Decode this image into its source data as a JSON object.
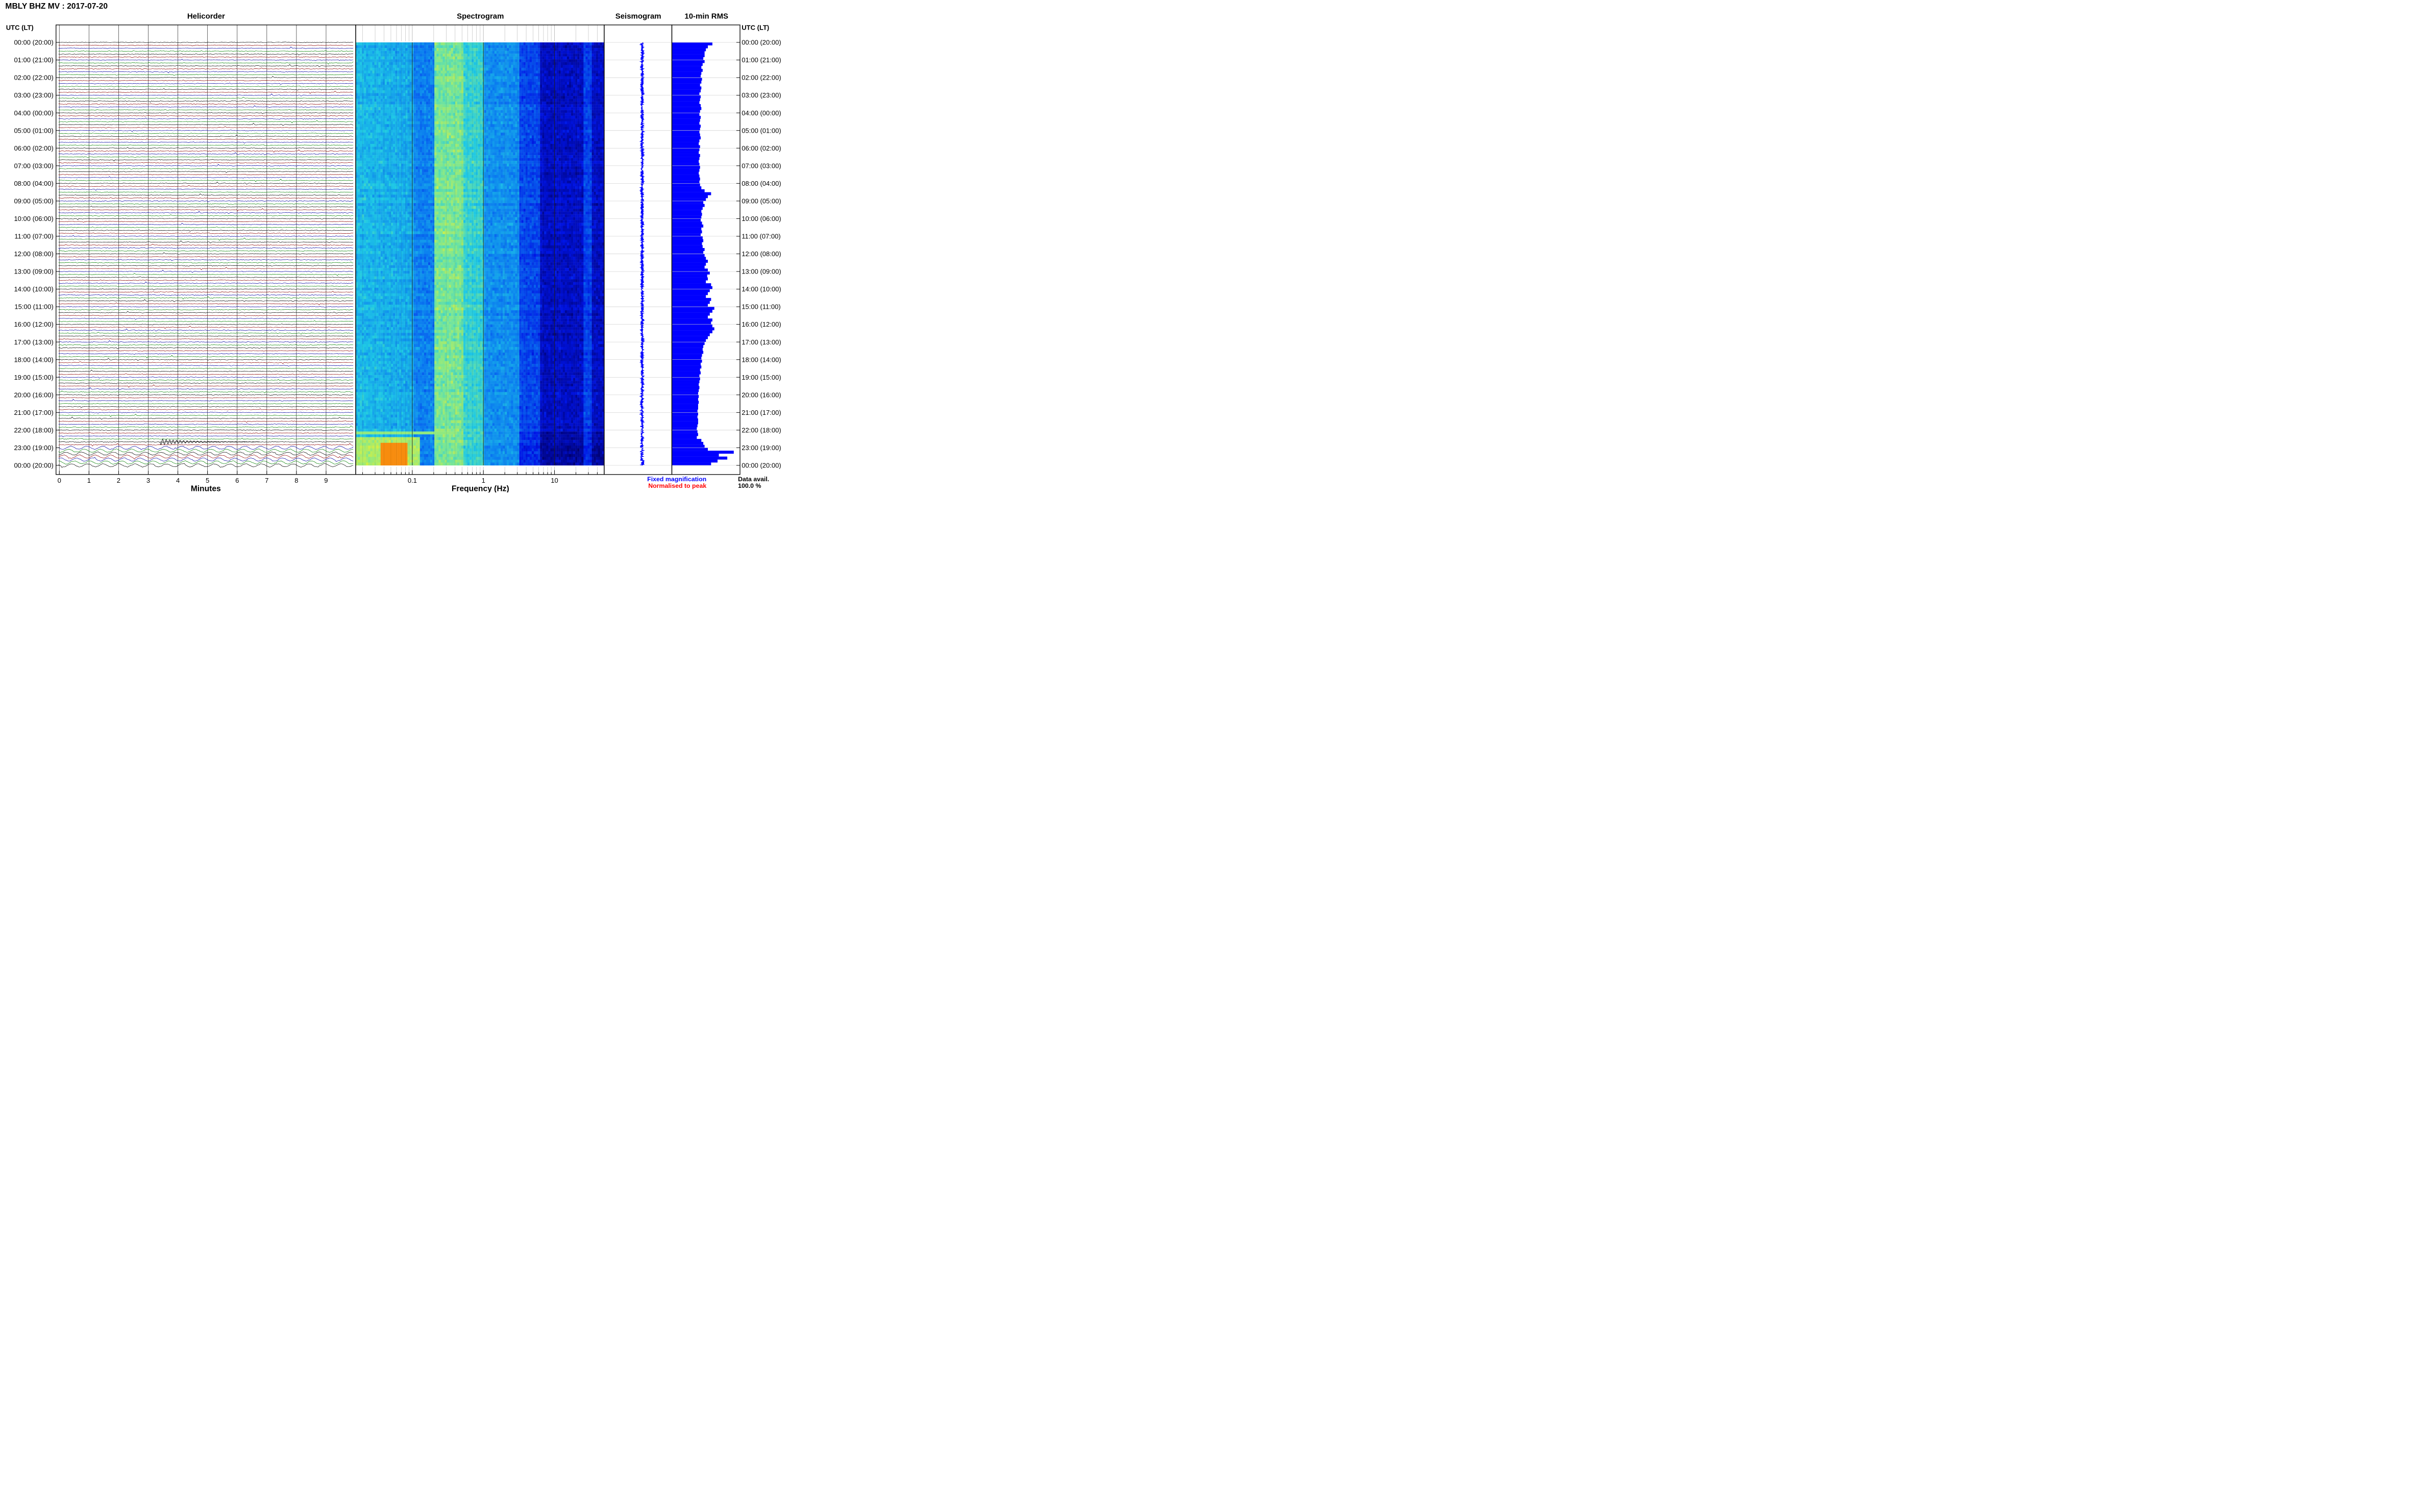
{
  "header": {
    "title": "MBLY BHZ MV : 2017-07-20"
  },
  "panels": {
    "helicorder": "Helicorder",
    "spectrogram": "Spectrogram",
    "seismogram": "Seismogram",
    "rms": "10-min RMS"
  },
  "time_axis": {
    "label_left": "UTC (LT)",
    "label_right": "UTC (LT)",
    "ticks": [
      "00:00 (20:00)",
      "01:00 (21:00)",
      "02:00 (22:00)",
      "03:00 (23:00)",
      "04:00 (00:00)",
      "05:00 (01:00)",
      "06:00 (02:00)",
      "07:00 (03:00)",
      "08:00 (04:00)",
      "09:00 (05:00)",
      "10:00 (06:00)",
      "11:00 (07:00)",
      "12:00 (08:00)",
      "13:00 (09:00)",
      "14:00 (10:00)",
      "15:00 (11:00)",
      "16:00 (12:00)",
      "17:00 (13:00)",
      "18:00 (14:00)",
      "19:00 (15:00)",
      "20:00 (16:00)",
      "21:00 (17:00)",
      "22:00 (18:00)",
      "23:00 (19:00)",
      "00:00 (20:00)"
    ]
  },
  "minutes_axis": {
    "label": "Minutes",
    "ticks": [
      "0",
      "1",
      "2",
      "3",
      "4",
      "5",
      "6",
      "7",
      "8",
      "9"
    ]
  },
  "frequency_axis": {
    "label": "Frequency (Hz)",
    "ticks": [
      "0.1",
      "1",
      "10"
    ],
    "scale": "log",
    "range_hz": [
      0.016,
      50
    ]
  },
  "legend": {
    "fixed": "Fixed magnification",
    "fixed_color": "#0000ff",
    "normalised": "Normalised to peak",
    "normalised_color": "#ff0000"
  },
  "data_avail": {
    "label": "Data avail.",
    "value": "100.0 %"
  },
  "colors": {
    "trace_cycle": [
      "#000000",
      "#8b0000",
      "#0000a0",
      "#008000"
    ],
    "rms_bar": "#0000ff",
    "seismogram": "#0000ff"
  },
  "chart_data": {
    "type": "bar",
    "title": "10-min RMS",
    "categories_note": "one bar per 10-minute interval, 00:00–24:00 UTC",
    "values": [
      0.62,
      0.55,
      0.52,
      0.5,
      0.5,
      0.48,
      0.5,
      0.47,
      0.45,
      0.47,
      0.45,
      0.44,
      0.46,
      0.45,
      0.43,
      0.45,
      0.44,
      0.42,
      0.44,
      0.43,
      0.42,
      0.44,
      0.45,
      0.43,
      0.42,
      0.44,
      0.43,
      0.42,
      0.44,
      0.43,
      0.42,
      0.43,
      0.44,
      0.42,
      0.41,
      0.43,
      0.42,
      0.41,
      0.43,
      0.42,
      0.41,
      0.42,
      0.43,
      0.42,
      0.41,
      0.42,
      0.43,
      0.42,
      0.43,
      0.45,
      0.5,
      0.6,
      0.55,
      0.52,
      0.48,
      0.5,
      0.47,
      0.45,
      0.46,
      0.45,
      0.44,
      0.46,
      0.48,
      0.45,
      0.46,
      0.44,
      0.47,
      0.48,
      0.46,
      0.47,
      0.5,
      0.48,
      0.5,
      0.52,
      0.55,
      0.52,
      0.5,
      0.55,
      0.58,
      0.54,
      0.55,
      0.52,
      0.6,
      0.62,
      0.58,
      0.55,
      0.52,
      0.6,
      0.58,
      0.55,
      0.65,
      0.62,
      0.58,
      0.55,
      0.62,
      0.6,
      0.62,
      0.65,
      0.62,
      0.58,
      0.55,
      0.52,
      0.5,
      0.48,
      0.47,
      0.48,
      0.46,
      0.45,
      0.46,
      0.44,
      0.45,
      0.43,
      0.44,
      0.42,
      0.43,
      0.42,
      0.41,
      0.42,
      0.41,
      0.4,
      0.41,
      0.4,
      0.41,
      0.4,
      0.4,
      0.39,
      0.4,
      0.39,
      0.4,
      0.4,
      0.39,
      0.38,
      0.39,
      0.4,
      0.38,
      0.45,
      0.48,
      0.5,
      0.55,
      0.95,
      0.72,
      0.85,
      0.7,
      0.6
    ],
    "ylim": [
      0,
      1
    ],
    "xlabel": "",
    "ylabel": ""
  }
}
